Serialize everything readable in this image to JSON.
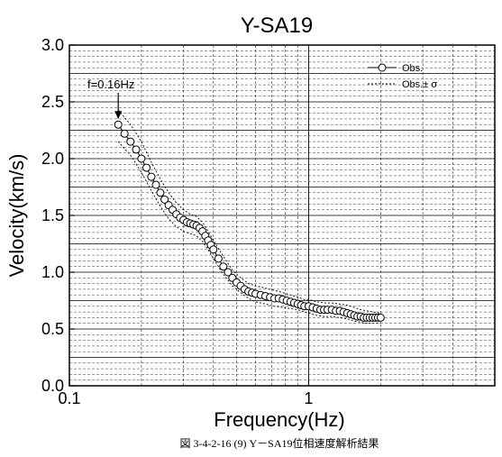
{
  "chart_data": {
    "type": "scatter",
    "title": "Y-SA19",
    "xlabel": "Frequency(Hz)",
    "ylabel": "Velocity(km/s)",
    "xscale": "log",
    "xlim": [
      0.1,
      6
    ],
    "ylim": [
      0.0,
      3.0
    ],
    "x_ticks": [
      0.1,
      1
    ],
    "x_tick_labels": [
      "0.1",
      "1"
    ],
    "y_ticks": [
      0.0,
      0.5,
      1.0,
      1.5,
      2.0,
      2.5,
      3.0
    ],
    "y_tick_labels": [
      "0.0",
      "0.5",
      "1.0",
      "1.5",
      "2.0",
      "2.5",
      "3.0"
    ],
    "grid": true,
    "legend_position": "top-right",
    "series": [
      {
        "name": "Obs.",
        "marker": "open-circle-line",
        "x": [
          0.16,
          0.17,
          0.18,
          0.19,
          0.2,
          0.21,
          0.22,
          0.23,
          0.24,
          0.25,
          0.26,
          0.27,
          0.28,
          0.29,
          0.3,
          0.31,
          0.32,
          0.33,
          0.34,
          0.35,
          0.36,
          0.37,
          0.38,
          0.39,
          0.4,
          0.42,
          0.44,
          0.46,
          0.48,
          0.5,
          0.52,
          0.54,
          0.56,
          0.58,
          0.6,
          0.63,
          0.66,
          0.69,
          0.72,
          0.75,
          0.78,
          0.81,
          0.84,
          0.87,
          0.9,
          0.93,
          0.96,
          1.0,
          1.04,
          1.08,
          1.12,
          1.16,
          1.2,
          1.25,
          1.3,
          1.35,
          1.4,
          1.45,
          1.5,
          1.55,
          1.6,
          1.65,
          1.7,
          1.75,
          1.8,
          1.85,
          1.9,
          1.95,
          2.0
        ],
        "y": [
          2.3,
          2.22,
          2.15,
          2.08,
          2.0,
          1.92,
          1.84,
          1.77,
          1.7,
          1.64,
          1.59,
          1.55,
          1.51,
          1.48,
          1.46,
          1.44,
          1.43,
          1.42,
          1.41,
          1.39,
          1.36,
          1.32,
          1.28,
          1.24,
          1.2,
          1.12,
          1.05,
          1.0,
          0.95,
          0.91,
          0.88,
          0.85,
          0.83,
          0.82,
          0.81,
          0.8,
          0.79,
          0.78,
          0.77,
          0.77,
          0.76,
          0.75,
          0.74,
          0.73,
          0.72,
          0.71,
          0.7,
          0.7,
          0.69,
          0.68,
          0.67,
          0.67,
          0.67,
          0.67,
          0.66,
          0.66,
          0.65,
          0.64,
          0.63,
          0.62,
          0.61,
          0.61,
          0.6,
          0.6,
          0.6,
          0.6,
          0.6,
          0.6,
          0.6
        ]
      },
      {
        "name": "Obs.± σ",
        "style": "dashed",
        "upper_x": [
          0.16,
          0.18,
          0.2,
          0.22,
          0.24,
          0.26,
          0.28,
          0.3,
          0.32,
          0.34,
          0.36,
          0.38,
          0.4,
          0.44,
          0.48,
          0.52,
          0.56,
          0.6,
          0.66,
          0.72,
          0.78,
          0.84,
          0.9,
          0.96,
          1.0,
          1.08,
          1.16,
          1.25,
          1.35,
          1.45,
          1.55,
          1.65,
          1.75,
          1.85,
          2.0
        ],
        "upper_y": [
          2.43,
          2.3,
          2.15,
          1.97,
          1.82,
          1.7,
          1.61,
          1.55,
          1.51,
          1.49,
          1.44,
          1.36,
          1.28,
          1.14,
          1.02,
          0.95,
          0.9,
          0.88,
          0.86,
          0.84,
          0.82,
          0.8,
          0.78,
          0.76,
          0.76,
          0.74,
          0.73,
          0.73,
          0.72,
          0.71,
          0.69,
          0.67,
          0.66,
          0.65,
          0.64
        ],
        "lower_x": [
          0.16,
          0.18,
          0.2,
          0.22,
          0.24,
          0.26,
          0.28,
          0.3,
          0.32,
          0.34,
          0.36,
          0.38,
          0.4,
          0.44,
          0.48,
          0.52,
          0.56,
          0.6,
          0.66,
          0.72,
          0.78,
          0.84,
          0.9,
          0.96,
          1.0,
          1.08,
          1.16,
          1.25,
          1.35,
          1.45,
          1.55,
          1.65,
          1.75,
          1.85,
          2.0
        ],
        "lower_y": [
          2.15,
          2.03,
          1.88,
          1.72,
          1.58,
          1.47,
          1.4,
          1.36,
          1.34,
          1.32,
          1.27,
          1.2,
          1.12,
          0.98,
          0.88,
          0.82,
          0.77,
          0.74,
          0.72,
          0.7,
          0.69,
          0.68,
          0.67,
          0.65,
          0.64,
          0.62,
          0.61,
          0.61,
          0.6,
          0.59,
          0.57,
          0.56,
          0.55,
          0.55,
          0.55
        ]
      }
    ],
    "annotation": {
      "text": "f=0.16Hz",
      "x": 0.16,
      "y": 2.3
    },
    "legend": {
      "obs_label": "Obs.",
      "sigma_label": "Obs.± σ"
    }
  },
  "caption": "図 3-4-2-16 (9)  Y－SA19位相速度解析結果"
}
